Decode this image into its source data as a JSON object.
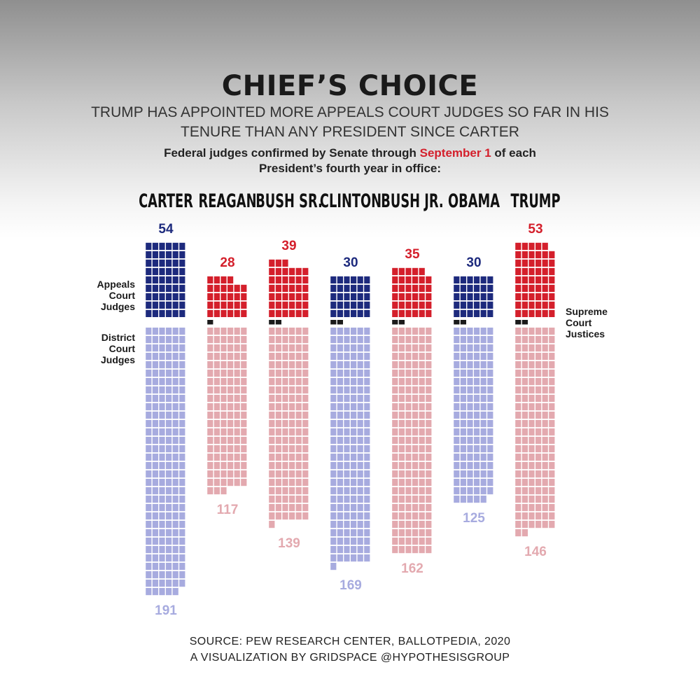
{
  "chart_data": {
    "type": "waffle",
    "title": "CHIEF’S CHOICE",
    "subtitle": "TRUMP HAS APPOINTED MORE APPEALS COURT JUDGES SO FAR IN HIS TENURE THAN ANY PRESIDENT SINCE CARTER",
    "intro": [
      "Federal judges confirmed by Senate through ",
      "September 1",
      " of each President’s fourth year in office:"
    ],
    "highlight_color": "#d41f2b",
    "categories": [
      "CARTER",
      "REAGAN",
      "BUSH SR.",
      "CLINTON",
      "BUSH JR.",
      "OBAMA",
      "TRUMP"
    ],
    "series": [
      {
        "name": "Appeals Court Judges",
        "values": [
          54,
          28,
          39,
          30,
          35,
          30,
          53
        ],
        "colors": [
          "#1d2a7d",
          "#d41f2b",
          "#d41f2b",
          "#1d2a7d",
          "#d41f2b",
          "#1d2a7d",
          "#d41f2b"
        ]
      },
      {
        "name": "Supreme Court Justices",
        "values": [
          0,
          1,
          2,
          2,
          2,
          2,
          2
        ],
        "color": "#1a1a1a"
      },
      {
        "name": "District Court Judges",
        "values": [
          191,
          117,
          139,
          169,
          162,
          125,
          146
        ],
        "colors": [
          "#a7abdf",
          "#e3a9af",
          "#e3a9af",
          "#a7abdf",
          "#e3a9af",
          "#a7abdf",
          "#e3a9af"
        ]
      }
    ],
    "source": [
      "SOURCE: PEW RESEARCH CENTER, BALLOTPEDIA, 2020",
      "A VISUALIZATION BY GRIDSPACE @HYPOTHESISGROUP"
    ]
  }
}
